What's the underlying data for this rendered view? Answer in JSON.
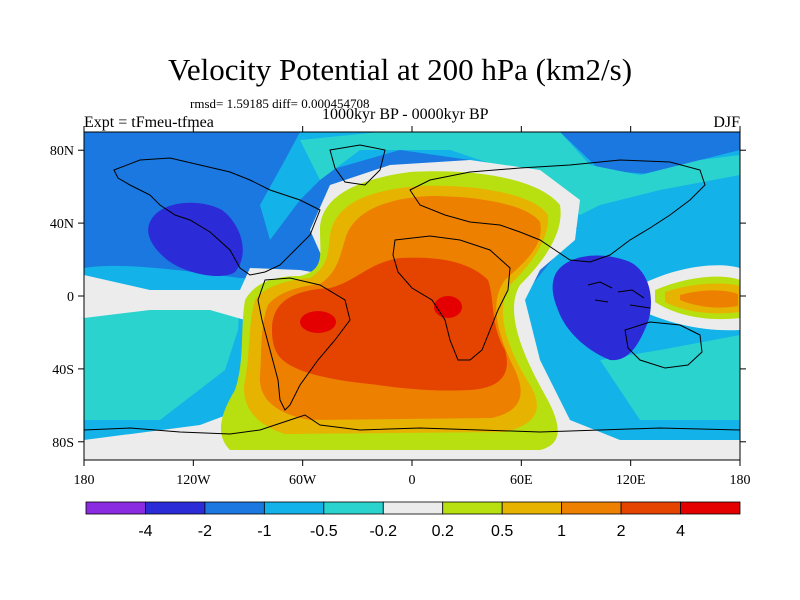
{
  "figure": {
    "title": "Velocity Potential at 200 hPa (km2/s)",
    "stats": "rmsd= 1.59185 diff= 0.000454708",
    "experiment": "Expt = tFmeu-tfmea",
    "period": "1000kyr BP - 0000kyr BP",
    "season": "DJF"
  },
  "map": {
    "projection": "cylindrical-equidistant",
    "lon_range": [
      -180,
      180
    ],
    "lat_range": [
      -90,
      90
    ],
    "field": "velocity potential anomaly",
    "x_ticks": [
      {
        "lon": -180,
        "label": "180"
      },
      {
        "lon": -120,
        "label": "120W"
      },
      {
        "lon": -60,
        "label": "60W"
      },
      {
        "lon": 0,
        "label": "0"
      },
      {
        "lon": 60,
        "label": "60E"
      },
      {
        "lon": 120,
        "label": "120E"
      },
      {
        "lon": 180,
        "label": "180"
      }
    ],
    "y_ticks": [
      {
        "lat": 80,
        "label": "80N"
      },
      {
        "lat": 40,
        "label": "40N"
      },
      {
        "lat": 0,
        "label": "0"
      },
      {
        "lat": -40,
        "label": "40S"
      },
      {
        "lat": -80,
        "label": "80S"
      }
    ],
    "colors": {
      "below_-4": "#8a2be2",
      "-4_to_-2": "#2b2bd8",
      "-2_to_-1": "#1a78e0",
      "-1_to_-0.5": "#13b2e8",
      "-0.5_to_-0.2": "#2bd3cf",
      "-0.2_to_0.2": "#ececec",
      "0.2_to_0.5": "#b8df10",
      "0.5_to_1": "#e6b400",
      "1_to_2": "#ee8000",
      "2_to_4": "#e44400",
      "above_4": "#e40000"
    }
  },
  "colorbar": {
    "levels": [
      "-4",
      "-2",
      "-1",
      "-0.5",
      "-0.2",
      "0.2",
      "0.5",
      "1",
      "2",
      "4"
    ],
    "colors": [
      "#8a2be2",
      "#2b2bd8",
      "#1a78e0",
      "#13b2e8",
      "#2bd3cf",
      "#ececec",
      "#b8df10",
      "#e6b400",
      "#ee8000",
      "#e44400",
      "#e40000"
    ]
  }
}
